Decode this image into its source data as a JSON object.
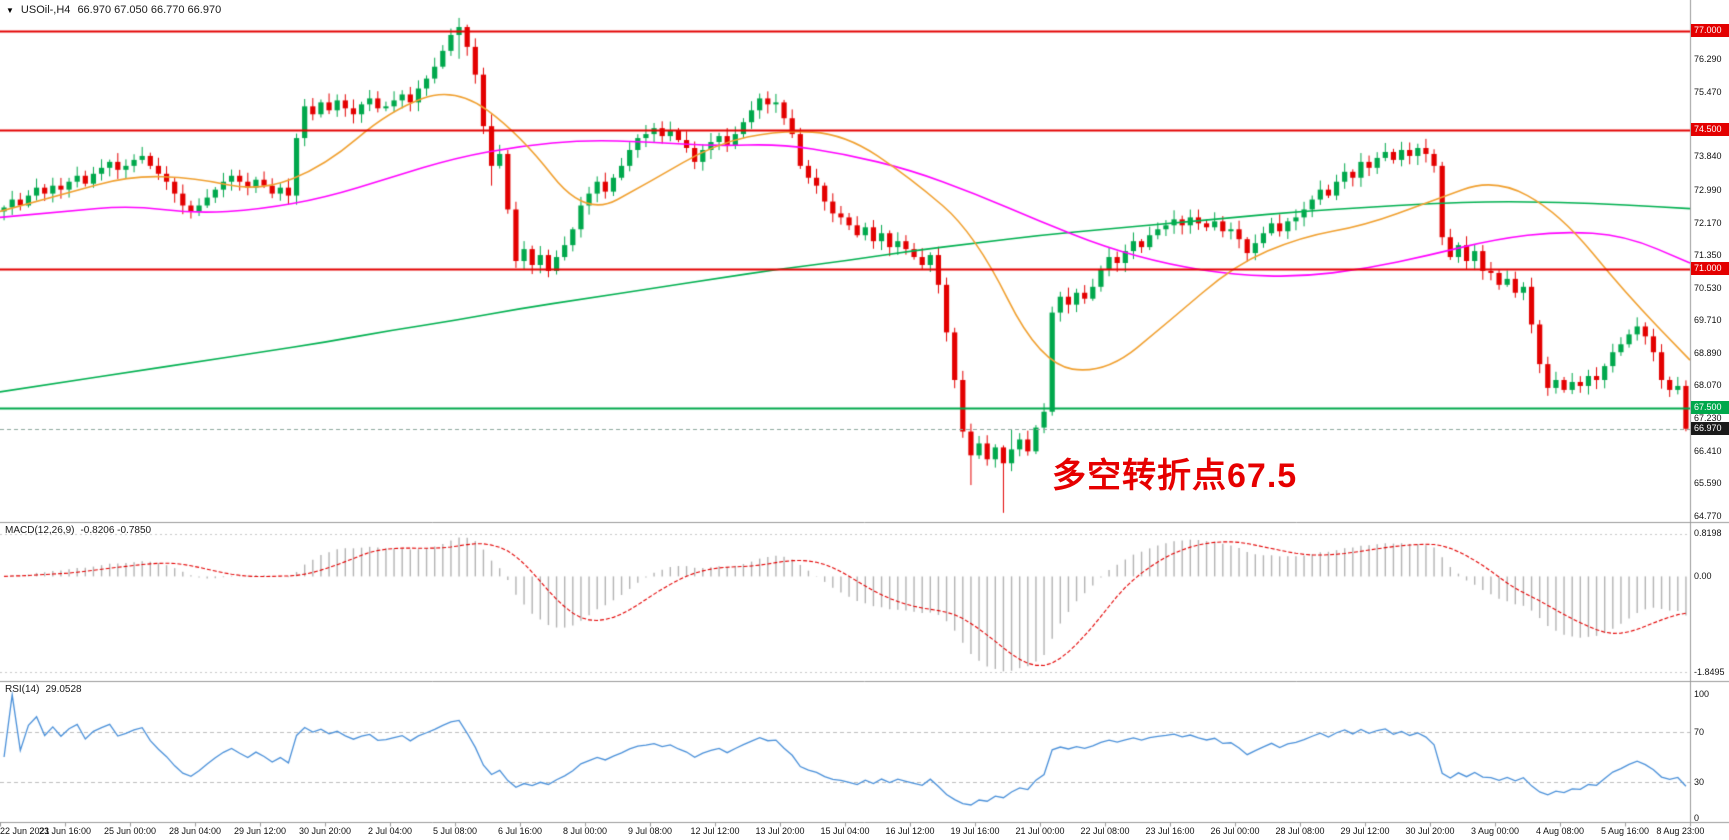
{
  "header": {
    "collapse_marker": "▼",
    "symbol": "USOil-,H4",
    "ohlc": "66.970 67.050 66.770 66.970"
  },
  "annotation": {
    "text": "多空转折点67.5",
    "color": "#e60000"
  },
  "price_axis": {
    "ticks": [
      "76.290",
      "75.470",
      "73.840",
      "72.990",
      "72.170",
      "71.350",
      "70.530",
      "69.710",
      "68.890",
      "68.070",
      "67.230",
      "66.410",
      "65.590",
      "64.770"
    ],
    "badges": [
      {
        "label": "77.000",
        "value": 77.0,
        "bg": "#e30000",
        "fg": "#ffffff"
      },
      {
        "label": "74.500",
        "value": 74.5,
        "bg": "#e30000",
        "fg": "#ffffff"
      },
      {
        "label": "71.000",
        "value": 71.0,
        "bg": "#e30000",
        "fg": "#ffffff"
      },
      {
        "label": "67.500",
        "value": 67.5,
        "bg": "#00a84c",
        "fg": "#ffffff"
      },
      {
        "label": "66.970",
        "value": 66.97,
        "bg": "#1a1a1a",
        "fg": "#ffffff"
      }
    ]
  },
  "time_axis": {
    "labels": [
      "22 Jun 2021",
      "23 Jun 16:00",
      "25 Jun 00:00",
      "28 Jun 04:00",
      "29 Jun 12:00",
      "30 Jun 20:00",
      "2 Jul 04:00",
      "5 Jul 08:00",
      "6 Jul 16:00",
      "8 Jul 00:00",
      "9 Jul 08:00",
      "12 Jul 12:00",
      "13 Jul 20:00",
      "15 Jul 04:00",
      "16 Jul 12:00",
      "19 Jul 16:00",
      "21 Jul 00:00",
      "22 Jul 08:00",
      "23 Jul 16:00",
      "26 Jul 00:00",
      "28 Jul 08:00",
      "29 Jul 12:00",
      "30 Jul 20:00",
      "3 Aug 00:00",
      "4 Aug 08:00",
      "5 Aug 16:00",
      "8 Aug 23:00"
    ]
  },
  "chart_data": {
    "type": "candlestick",
    "symbol": "USOil",
    "timeframe": "H4",
    "y_range": {
      "min": 64.72,
      "max": 77.58
    },
    "bars_per_label": 8,
    "closes": [
      72.55,
      72.75,
      72.6,
      72.85,
      73.05,
      72.9,
      73.1,
      73.0,
      73.2,
      73.35,
      73.15,
      73.4,
      73.55,
      73.7,
      73.5,
      73.6,
      73.75,
      73.85,
      73.6,
      73.4,
      73.2,
      72.9,
      72.6,
      72.45,
      72.6,
      72.8,
      73.0,
      73.2,
      73.35,
      73.2,
      73.05,
      73.25,
      73.1,
      72.9,
      73.05,
      72.85,
      74.3,
      75.1,
      74.9,
      75.2,
      75.0,
      75.25,
      75.05,
      74.9,
      75.15,
      75.3,
      75.05,
      75.1,
      75.25,
      75.4,
      75.2,
      75.55,
      75.8,
      76.1,
      76.5,
      76.9,
      77.1,
      76.6,
      75.9,
      74.6,
      73.6,
      73.9,
      72.5,
      71.2,
      71.5,
      71.1,
      71.35,
      70.95,
      71.3,
      71.6,
      72.0,
      72.6,
      72.9,
      73.2,
      72.95,
      73.3,
      73.6,
      74.0,
      74.3,
      74.4,
      74.55,
      74.35,
      74.5,
      74.25,
      74.05,
      73.7,
      74.0,
      74.2,
      74.35,
      74.1,
      74.4,
      74.7,
      75.0,
      75.3,
      75.15,
      75.2,
      74.8,
      74.4,
      73.6,
      73.3,
      73.1,
      72.7,
      72.4,
      72.3,
      72.1,
      71.85,
      72.05,
      71.7,
      71.9,
      71.55,
      71.7,
      71.5,
      71.3,
      71.1,
      71.35,
      70.6,
      69.4,
      68.2,
      66.9,
      66.3,
      66.6,
      66.2,
      66.5,
      66.1,
      66.45,
      66.7,
      66.4,
      67.0,
      67.4,
      69.9,
      70.3,
      70.1,
      70.4,
      70.25,
      70.55,
      71.0,
      71.3,
      71.15,
      71.45,
      71.7,
      71.55,
      71.85,
      72.0,
      72.1,
      72.25,
      72.1,
      72.3,
      72.15,
      72.05,
      72.2,
      71.95,
      72.0,
      71.75,
      71.4,
      71.65,
      71.9,
      72.15,
      71.95,
      72.2,
      72.3,
      72.5,
      72.75,
      73.0,
      72.85,
      73.2,
      73.45,
      73.3,
      73.7,
      73.55,
      73.8,
      73.95,
      73.75,
      74.0,
      73.85,
      74.05,
      73.9,
      73.6,
      71.8,
      71.3,
      71.6,
      71.2,
      71.45,
      70.95,
      70.9,
      70.6,
      70.75,
      70.4,
      70.55,
      69.6,
      68.6,
      68.0,
      68.2,
      67.95,
      68.15,
      68.05,
      68.3,
      68.2,
      68.55,
      68.9,
      69.1,
      69.35,
      69.55,
      69.3,
      68.9,
      68.2,
      67.95,
      68.05,
      66.97
    ],
    "wick_overrides": {
      "56": [
        77.33,
        76.3
      ],
      "60": [
        74.9,
        73.1
      ],
      "119": [
        67.1,
        65.55
      ],
      "123": [
        66.55,
        64.85
      ],
      "124": [
        66.95,
        65.9
      ],
      "129": [
        70.05,
        67.3
      ],
      "177": [
        73.7,
        71.6
      ]
    },
    "candle_up_color": "#00a84c",
    "candle_down_color": "#e30000",
    "price_lines": [
      {
        "value": 77.0,
        "color": "#e30000",
        "style": "solid",
        "width": 2
      },
      {
        "value": 74.5,
        "color": "#e30000",
        "style": "solid",
        "width": 2
      },
      {
        "value": 71.0,
        "color": "#e30000",
        "style": "solid",
        "width": 2
      },
      {
        "value": 67.5,
        "color": "#00a84c",
        "style": "solid",
        "width": 2
      },
      {
        "value": 66.97,
        "color": "#8ea89e",
        "style": "dashed",
        "width": 1
      }
    ],
    "moving_averages": [
      {
        "name": "ma-slow-green",
        "color": "#00b050",
        "points": [
          67.9,
          68.15,
          68.4,
          68.65,
          68.9,
          69.15,
          69.45,
          69.7,
          70.0,
          70.25,
          70.5,
          70.75,
          71.0,
          71.2,
          71.45,
          71.65,
          71.85,
          72.0,
          72.15,
          72.3,
          72.45,
          72.55,
          72.65,
          72.7,
          72.68,
          72.62,
          72.52
        ]
      },
      {
        "name": "ma-mid-magenta",
        "color": "#ff00ff",
        "points": [
          72.3,
          72.45,
          72.6,
          72.4,
          72.5,
          72.8,
          73.3,
          73.8,
          74.1,
          74.25,
          74.2,
          74.1,
          74.15,
          73.9,
          73.5,
          72.9,
          72.2,
          71.55,
          71.1,
          70.85,
          70.8,
          71.0,
          71.35,
          71.75,
          71.95,
          71.85,
          71.15
        ]
      },
      {
        "name": "ma-fast-orange",
        "color": "#f0a030",
        "points": [
          72.45,
          72.9,
          73.35,
          73.3,
          72.95,
          73.6,
          75.0,
          75.6,
          74.4,
          72.3,
          73.2,
          74.15,
          74.5,
          74.4,
          73.3,
          71.9,
          68.6,
          68.35,
          69.7,
          71.1,
          71.8,
          72.1,
          72.7,
          73.3,
          72.4,
          70.4,
          68.7
        ]
      }
    ],
    "macd": {
      "label": "MACD(12,26,9)",
      "values_text": "-0.8206 -0.7850",
      "fast": 12,
      "slow": 26,
      "signal": 9,
      "axis": {
        "top": "0.8198",
        "zero": "0.00",
        "bottom": "-1.8495"
      },
      "histogram_color": "#b3b3b3",
      "signal_color": "#e30000"
    },
    "rsi": {
      "label": "RSI(14)",
      "value_text": "29.0528",
      "period": 14,
      "levels": [
        70,
        30
      ],
      "axis": [
        "100",
        "70",
        "30",
        "0"
      ],
      "line_color": "#4a90d9"
    }
  }
}
